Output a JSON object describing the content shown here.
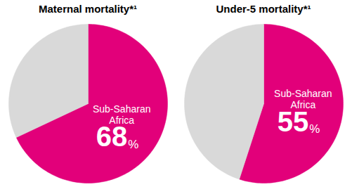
{
  "chart_data": [
    {
      "type": "pie",
      "title": "Maternal mortality*¹",
      "categories": [
        "Sub-Saharan Africa",
        null
      ],
      "values": [
        68,
        32
      ],
      "value_labels": [
        "68%",
        null
      ],
      "colors": [
        "#e2007a",
        "#d9d9d9"
      ],
      "data_labels": true
    },
    {
      "type": "pie",
      "title": "Under-5 mortality*¹",
      "categories": [
        "Sub-Saharan Africa",
        null
      ],
      "values": [
        55,
        45
      ],
      "value_labels": [
        "55%",
        null
      ],
      "colors": [
        "#e2007a",
        "#d9d9d9"
      ],
      "data_labels": true
    }
  ]
}
